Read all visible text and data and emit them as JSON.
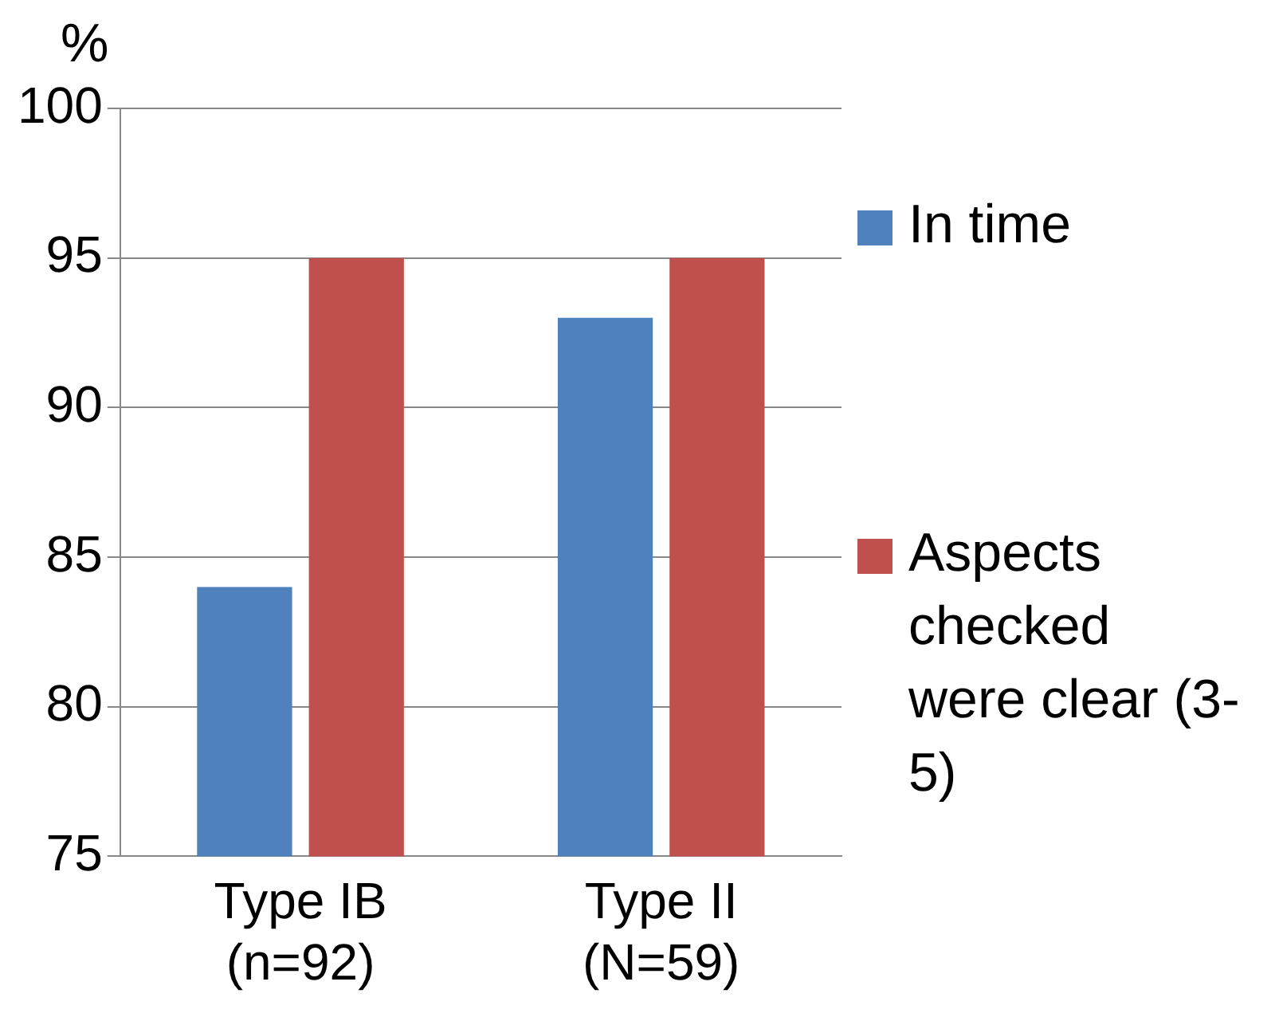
{
  "chart_data": {
    "type": "bar",
    "ylabel": "%",
    "categories": [
      "Type IB (n=92)",
      "Type II (N=59)"
    ],
    "series": [
      {
        "name": "In time",
        "color": "#4f81bd",
        "values": [
          84,
          93
        ]
      },
      {
        "name": "Aspects checked were clear (3-5)",
        "color": "#c0504d",
        "values": [
          95,
          95
        ]
      }
    ],
    "ylim": [
      75,
      100
    ],
    "yticks": [
      75,
      80,
      85,
      90,
      95,
      100
    ],
    "grid": "y",
    "legend": "right"
  }
}
